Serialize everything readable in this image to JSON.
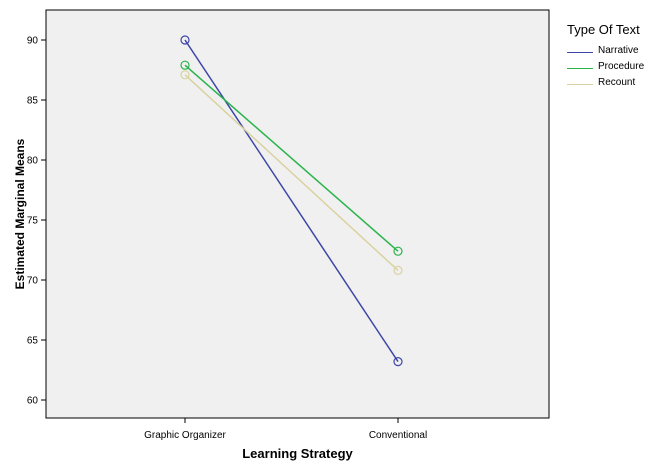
{
  "chart_data": {
    "type": "line",
    "title": "",
    "xlabel": "Learning Strategy",
    "ylabel": "Estimated Marginal Means",
    "categories": [
      "Graphic Organizer",
      "Conventional"
    ],
    "ylim": [
      58.5,
      92.5
    ],
    "yticks": [
      60,
      65,
      70,
      75,
      80,
      85,
      90
    ],
    "grid": false,
    "legend_title": "Type Of Text",
    "legend_position": "right",
    "series": [
      {
        "name": "Narrative",
        "color": "#3d46a8",
        "values": [
          90.0,
          63.2
        ]
      },
      {
        "name": "Procedure",
        "color": "#2ab34a",
        "values": [
          87.9,
          72.4
        ]
      },
      {
        "name": "Recount",
        "color": "#d9d29f",
        "values": [
          87.1,
          70.8
        ]
      }
    ],
    "plot_background": "#f0f0f0",
    "marker": "open-circle"
  }
}
